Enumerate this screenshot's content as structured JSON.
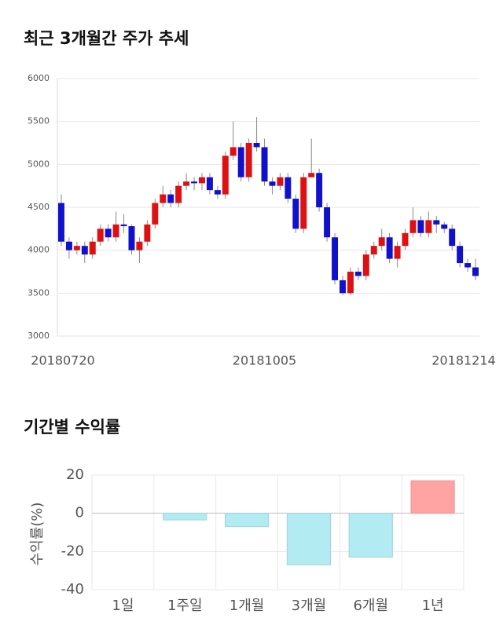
{
  "chart_data": [
    {
      "type": "candlestick",
      "title": "최근 3개월간 주가 추세",
      "categories": [
        "20180720",
        null,
        null,
        null,
        null,
        null,
        null,
        null,
        null,
        null,
        null,
        null,
        null,
        null,
        null,
        null,
        null,
        null,
        null,
        null,
        null,
        null,
        null,
        null,
        null,
        null,
        "20181005",
        null,
        null,
        null,
        null,
        null,
        null,
        null,
        null,
        null,
        null,
        null,
        null,
        null,
        null,
        null,
        null,
        null,
        null,
        null,
        null,
        null,
        null,
        null,
        null,
        null,
        null,
        "20181214"
      ],
      "open": [
        4550,
        4100,
        4000,
        4050,
        3950,
        4100,
        4250,
        4150,
        4300,
        4280,
        4000,
        4100,
        4300,
        4550,
        4650,
        4550,
        4750,
        4800,
        4780,
        4850,
        4700,
        4650,
        5100,
        5200,
        4850,
        5250,
        5200,
        4800,
        4750,
        4850,
        4600,
        4250,
        4850,
        4900,
        4500,
        4150,
        3650,
        3500,
        3750,
        3700,
        3950,
        4050,
        4150,
        3900,
        4050,
        4200,
        4350,
        4200,
        4350,
        4300,
        4250,
        4050,
        3850,
        3800
      ],
      "high": [
        4650,
        4150,
        4100,
        4100,
        4150,
        4300,
        4300,
        4450,
        4420,
        4300,
        4150,
        4350,
        4600,
        4750,
        4700,
        4800,
        4900,
        4850,
        4900,
        4900,
        4750,
        5150,
        5500,
        5250,
        5300,
        5550,
        5300,
        4850,
        4900,
        4900,
        4650,
        4900,
        5300,
        4950,
        4550,
        4200,
        3700,
        3800,
        3800,
        4000,
        4100,
        4250,
        4200,
        4100,
        4250,
        4500,
        4400,
        4450,
        4400,
        4330,
        4300,
        4100,
        3900,
        3900
      ],
      "low": [
        4050,
        3900,
        3950,
        3850,
        3900,
        4050,
        4100,
        4100,
        4200,
        3950,
        3850,
        4050,
        4250,
        4500,
        4500,
        4500,
        4700,
        4700,
        4700,
        4650,
        4600,
        4600,
        5050,
        4800,
        4800,
        5150,
        4750,
        4650,
        4700,
        4550,
        4200,
        4200,
        4850,
        4450,
        4100,
        3600,
        3480,
        3480,
        3650,
        3650,
        3900,
        4000,
        3850,
        3800,
        4000,
        4150,
        4150,
        4150,
        4200,
        4200,
        4000,
        3800,
        3750,
        3650
      ],
      "close": [
        4100,
        4000,
        4050,
        3950,
        4100,
        4250,
        4150,
        4300,
        4280,
        4000,
        4100,
        4300,
        4550,
        4650,
        4550,
        4750,
        4800,
        4780,
        4850,
        4700,
        4650,
        5100,
        5200,
        4850,
        5250,
        5200,
        4800,
        4750,
        4850,
        4600,
        4250,
        4850,
        4900,
        4500,
        4150,
        3650,
        3500,
        3750,
        3700,
        3950,
        4050,
        4150,
        3900,
        4050,
        4200,
        4350,
        4200,
        4350,
        4300,
        4250,
        4050,
        3850,
        3800,
        3700
      ],
      "up_color": "#dd1111",
      "down_color": "#1111cc",
      "ylim": [
        3000,
        6000
      ],
      "yticks": [
        3000,
        3500,
        4000,
        4500,
        5000,
        5500,
        6000
      ],
      "grid": true
    },
    {
      "type": "bar",
      "title": "기간별 수익률",
      "ylabel": "수익률(%)",
      "categories": [
        "1일",
        "1주일",
        "1개월",
        "3개월",
        "6개월",
        "1년"
      ],
      "values": [
        0,
        -3.5,
        -7,
        -27,
        -23,
        17
      ],
      "colors": [
        "#b3ebf2",
        "#b3ebf2",
        "#b3ebf2",
        "#b3ebf2",
        "#b3ebf2",
        "#ffa3a3"
      ],
      "ylim": [
        -40,
        20
      ],
      "yticks": [
        -40,
        -20,
        0,
        20
      ],
      "grid": true
    }
  ]
}
